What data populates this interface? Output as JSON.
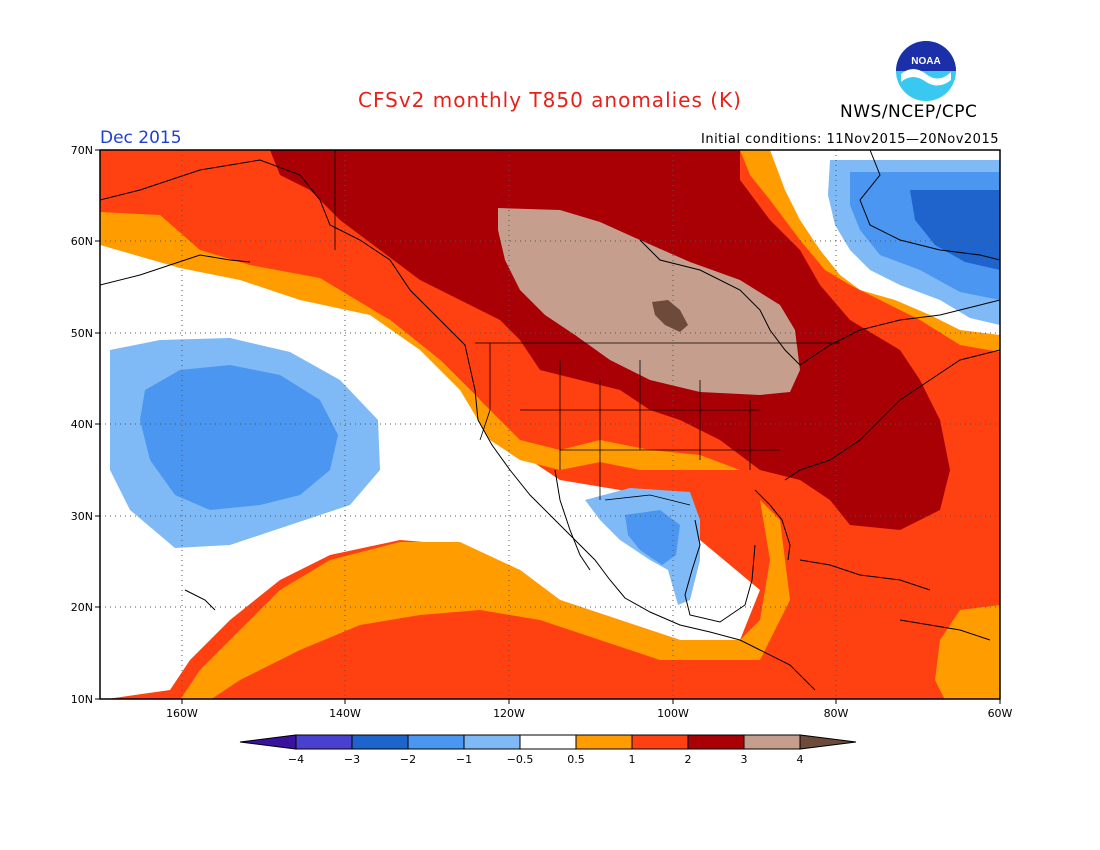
{
  "title": "CFSv2 monthly T850 anomalies (K)",
  "agency": "NWS/NCEP/CPC",
  "logo_text": "NOAA",
  "month": "Dec 2015",
  "initial_conditions": "Initial conditions: 11Nov2015—20Nov2015",
  "map": {
    "projection": "lat-lon",
    "lon_range": [
      -170,
      -60
    ],
    "lat_range": [
      10,
      70
    ],
    "lat_labels": [
      "70N",
      "60N",
      "50N",
      "40N",
      "30N",
      "20N",
      "10N"
    ],
    "lon_labels": [
      "160W",
      "140W",
      "120W",
      "100W",
      "80W",
      "60W"
    ],
    "gridlines": "dotted",
    "regions": [
      "Cold anomaly centered near 35N 155W (-1 to -2 K)",
      "Cold anomaly over Texas / northern Mexico (-0.5 to -2 K)",
      "Cold anomaly over Greenland / Baffin (-0.5 to -3 K)",
      "Warmest anomaly over central Canada / northern Plains (3 to 4 K)",
      "Warm anomaly over eastern US and western Atlantic (2 to 3 K)"
    ]
  },
  "colorbar": {
    "labels": [
      "−4",
      "−3",
      "−2",
      "−1",
      "−0.5",
      "0.5",
      "1",
      "2",
      "3",
      "4"
    ],
    "colors": [
      "#3a12a0",
      "#4a40d0",
      "#1f63cc",
      "#4a96f0",
      "#7fbaf6",
      "#ffffff",
      "#ff9d00",
      "#ff4010",
      "#a80004",
      "#c59e8e",
      "#6e4a3a"
    ]
  }
}
